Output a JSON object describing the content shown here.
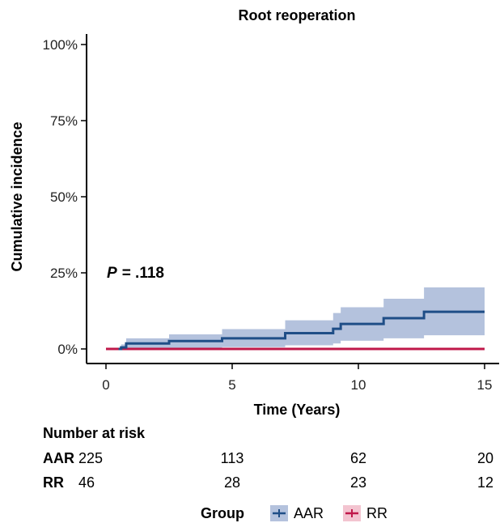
{
  "chart_data": {
    "type": "line",
    "title": "Root reoperation",
    "xlabel": "Time (Years)",
    "ylabel": "Cumulative incidence",
    "xlim": [
      0,
      15
    ],
    "ylim": [
      0,
      1
    ],
    "x_ticks": [
      "0",
      "5",
      "10",
      "15"
    ],
    "y_ticks": [
      "0%",
      "25%",
      "50%",
      "75%",
      "100%"
    ],
    "annotation": {
      "p_label": "P",
      "p_value": "= .118"
    },
    "grid": false,
    "legend_position": "bottom",
    "legend_title": "Group",
    "series": [
      {
        "name": "AAR",
        "color": "#1f4e87",
        "band_color": "#b4c2dd",
        "step_points": [
          [
            0.5,
            0.0
          ],
          [
            0.6,
            0.005
          ],
          [
            0.8,
            0.018
          ],
          [
            2.5,
            0.026
          ],
          [
            4.6,
            0.035
          ],
          [
            7.1,
            0.052
          ],
          [
            9.0,
            0.066
          ],
          [
            9.3,
            0.082
          ],
          [
            11.0,
            0.101
          ],
          [
            12.6,
            0.122
          ],
          [
            15.0,
            0.122
          ]
        ],
        "ci_upper": [
          [
            0.5,
            0.0
          ],
          [
            0.6,
            0.015
          ],
          [
            0.8,
            0.035
          ],
          [
            2.5,
            0.048
          ],
          [
            4.6,
            0.065
          ],
          [
            7.1,
            0.094
          ],
          [
            9.0,
            0.118
          ],
          [
            9.3,
            0.137
          ],
          [
            11.0,
            0.165
          ],
          [
            12.6,
            0.202
          ],
          [
            15.0,
            0.202
          ]
        ],
        "ci_lower": [
          [
            0.5,
            0.0
          ],
          [
            0.6,
            0.0
          ],
          [
            0.8,
            0.0
          ],
          [
            2.5,
            0.003
          ],
          [
            4.6,
            0.006
          ],
          [
            7.1,
            0.012
          ],
          [
            9.0,
            0.018
          ],
          [
            9.3,
            0.027
          ],
          [
            11.0,
            0.035
          ],
          [
            12.6,
            0.045
          ],
          [
            15.0,
            0.045
          ]
        ]
      },
      {
        "name": "RR",
        "color": "#c0184a",
        "band_color": "#f3c4d0",
        "step_points": [
          [
            0,
            0.0
          ],
          [
            15.0,
            0.0
          ]
        ]
      }
    ],
    "risk_table": {
      "title": "Number at risk",
      "time_points": [
        0,
        5,
        10,
        15
      ],
      "rows": [
        {
          "group": "AAR",
          "values": [
            "225",
            "113",
            "62",
            "20"
          ]
        },
        {
          "group": "RR",
          "values": [
            "46",
            "28",
            "23",
            "12"
          ]
        }
      ]
    }
  }
}
